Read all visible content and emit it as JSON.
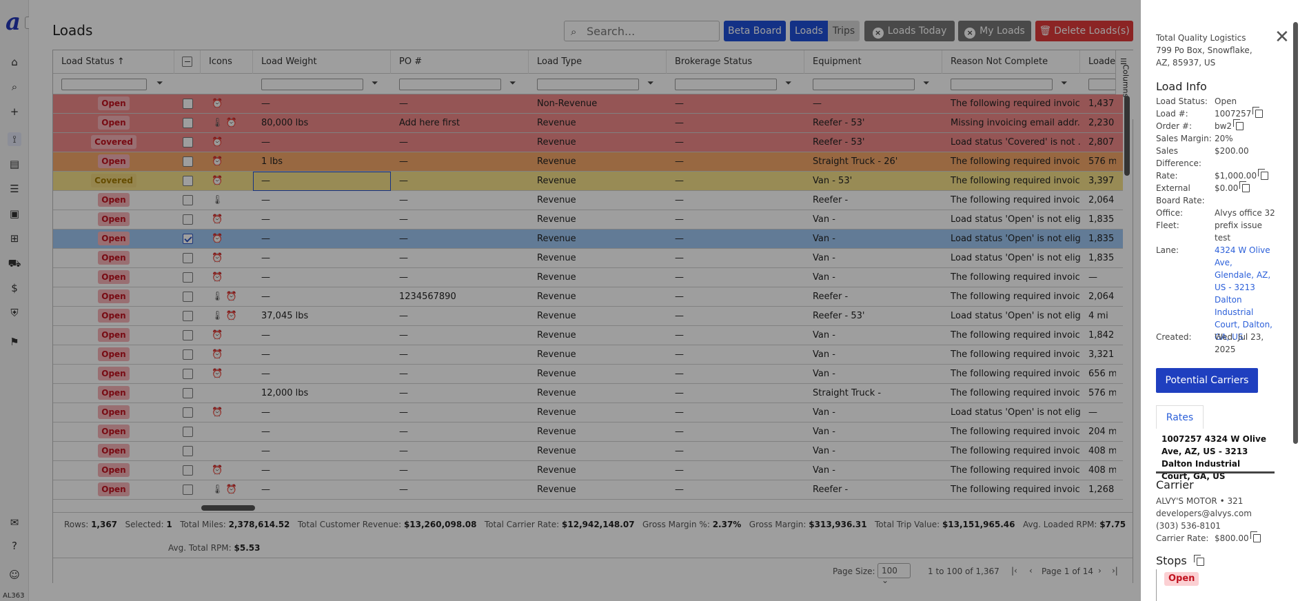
{
  "sidebar": {
    "logo": "a",
    "expand": "›",
    "version": "AL363",
    "icons": [
      "home-icon",
      "search-icon",
      "plus-icon",
      "route-icon",
      "document-icon",
      "list-icon",
      "contacts-icon",
      "hierarchy-icon",
      "truck-icon",
      "invoice-icon",
      "shield-icon",
      "bookmark-icon",
      "chat-icon",
      "help-icon",
      "user-icon"
    ]
  },
  "page": {
    "title": "Loads"
  },
  "search": {
    "placeholder": "Search..."
  },
  "toolbar": {
    "beta_board": "Beta Board",
    "loads": "Loads",
    "trips": "Trips",
    "loads_today": "Loads Today",
    "my_loads": "My Loads",
    "delete_loads": "Delete Loads(s)"
  },
  "colors": {
    "red_row": "#f08a8a",
    "orange_row": "#f5a96a",
    "yellow_row": "#f6e08a",
    "selected_row": "#9ec7f2",
    "open_badge": "#f7b3b8",
    "covered_badge": "#f1d77f",
    "primary": "#2438b8"
  },
  "columns": [
    "Load Status",
    "Icons",
    "Load Weight",
    "PO #",
    "Load Type",
    "Brokerage Status",
    "Equipment",
    "Reason Not Complete",
    "Loaded"
  ],
  "sort_indicator": "↑",
  "columns_tab": "Columns",
  "rows": [
    {
      "status": "Open",
      "tone": "red",
      "checked": false,
      "icons": "A",
      "weight": "—",
      "po": "—",
      "type": "Non-Revenue",
      "brokerage": "—",
      "equipment": "—",
      "reason": "The following required invoic...",
      "loaded": "1,437"
    },
    {
      "status": "Open",
      "tone": "red",
      "checked": false,
      "icons": "TA",
      "weight": "80,000 lbs",
      "po": "Add here first",
      "type": "Revenue",
      "brokerage": "—",
      "equipment": "Reefer - 53'",
      "reason": "Missing invoicing email addr...",
      "loaded": "2,230"
    },
    {
      "status": "Covered",
      "tone": "red",
      "checked": false,
      "icons": "A",
      "weight": "—",
      "po": "—",
      "type": "Revenue",
      "brokerage": "—",
      "equipment": "Reefer - 53'",
      "reason": "Load status 'Covered' is not ...",
      "loaded": "2,807"
    },
    {
      "status": "Open",
      "tone": "orange",
      "checked": false,
      "icons": "A",
      "weight": "1 lbs",
      "po": "—",
      "type": "Revenue",
      "brokerage": "—",
      "equipment": "Straight Truck - 26'",
      "reason": "The following required invoic...",
      "loaded": "576 m"
    },
    {
      "status": "Covered",
      "tone": "yellow",
      "checked": false,
      "icons": "A",
      "weight": "—",
      "po": "—",
      "type": "Revenue",
      "brokerage": "—",
      "equipment": "Van - 53'",
      "reason": "The following required invoic...",
      "loaded": "3,397"
    },
    {
      "status": "Open",
      "tone": "grey",
      "checked": false,
      "icons": "T",
      "weight": "—",
      "po": "—",
      "type": "Revenue",
      "brokerage": "—",
      "equipment": "Reefer -",
      "reason": "The following required invoic...",
      "loaded": "2,064"
    },
    {
      "status": "Open",
      "tone": "grey",
      "checked": false,
      "icons": "A",
      "weight": "—",
      "po": "—",
      "type": "Revenue",
      "brokerage": "—",
      "equipment": "Van -",
      "reason": "Load status 'Open' is not elig...",
      "loaded": "1,835"
    },
    {
      "status": "Open",
      "tone": "blue",
      "checked": true,
      "icons": "A",
      "weight": "—",
      "po": "—",
      "type": "Revenue",
      "brokerage": "—",
      "equipment": "Van -",
      "reason": "Load status 'Open' is not elig...",
      "loaded": "1,835"
    },
    {
      "status": "Open",
      "tone": "grey",
      "checked": false,
      "icons": "A",
      "weight": "—",
      "po": "—",
      "type": "Revenue",
      "brokerage": "—",
      "equipment": "Van -",
      "reason": "Load status 'Open' is not elig...",
      "loaded": "1,835"
    },
    {
      "status": "Open",
      "tone": "grey",
      "checked": false,
      "icons": "A",
      "weight": "—",
      "po": "—",
      "type": "Revenue",
      "brokerage": "—",
      "equipment": "Van -",
      "reason": "The following required invoic...",
      "loaded": "—"
    },
    {
      "status": "Open",
      "tone": "grey",
      "checked": false,
      "icons": "TA",
      "weight": "—",
      "po": "1234567890",
      "type": "Revenue",
      "brokerage": "—",
      "equipment": "Reefer -",
      "reason": "The following required invoic...",
      "loaded": "2,064"
    },
    {
      "status": "Open",
      "tone": "grey",
      "checked": false,
      "icons": "TA",
      "weight": "37,045 lbs",
      "po": "—",
      "type": "Revenue",
      "brokerage": "—",
      "equipment": "Reefer - 53'",
      "reason": "Load status 'Open' is not elig...",
      "loaded": "4 mi"
    },
    {
      "status": "Open",
      "tone": "grey",
      "checked": false,
      "icons": "A",
      "weight": "—",
      "po": "—",
      "type": "Revenue",
      "brokerage": "—",
      "equipment": "Van -",
      "reason": "The following required invoic...",
      "loaded": "1,842"
    },
    {
      "status": "Open",
      "tone": "grey",
      "checked": false,
      "icons": "A",
      "weight": "—",
      "po": "—",
      "type": "Revenue",
      "brokerage": "—",
      "equipment": "Van -",
      "reason": "The following required invoic...",
      "loaded": "3,321"
    },
    {
      "status": "Open",
      "tone": "grey",
      "checked": false,
      "icons": "A",
      "weight": "—",
      "po": "—",
      "type": "Revenue",
      "brokerage": "—",
      "equipment": "Van -",
      "reason": "The following required invoic...",
      "loaded": "656 m"
    },
    {
      "status": "Open",
      "tone": "grey",
      "checked": false,
      "icons": "",
      "weight": "12,000 lbs",
      "po": "—",
      "type": "Revenue",
      "brokerage": "—",
      "equipment": "Straight Truck -",
      "reason": "The following required invoic...",
      "loaded": "576 m"
    },
    {
      "status": "Open",
      "tone": "grey",
      "checked": false,
      "icons": "A",
      "weight": "—",
      "po": "—",
      "type": "Revenue",
      "brokerage": "—",
      "equipment": "Van -",
      "reason": "Load status 'Open' is not elig...",
      "loaded": "—"
    },
    {
      "status": "Open",
      "tone": "grey",
      "checked": false,
      "icons": "",
      "weight": "—",
      "po": "—",
      "type": "Revenue",
      "brokerage": "—",
      "equipment": "Van -",
      "reason": "The following required invoic...",
      "loaded": "204 m"
    },
    {
      "status": "Open",
      "tone": "grey",
      "checked": false,
      "icons": "",
      "weight": "—",
      "po": "—",
      "type": "Revenue",
      "brokerage": "—",
      "equipment": "Van -",
      "reason": "The following required invoic...",
      "loaded": "408 m"
    },
    {
      "status": "Open",
      "tone": "grey",
      "checked": false,
      "icons": "A",
      "weight": "—",
      "po": "—",
      "type": "Revenue",
      "brokerage": "—",
      "equipment": "Van -",
      "reason": "The following required invoic...",
      "loaded": "408 m"
    },
    {
      "status": "Open",
      "tone": "grey",
      "checked": false,
      "icons": "TA",
      "weight": "—",
      "po": "—",
      "type": "Revenue",
      "brokerage": "—",
      "equipment": "Reefer -",
      "reason": "The following required invoic...",
      "loaded": "1,268"
    }
  ],
  "summary": {
    "rows_label": "Rows:",
    "rows": "1,367",
    "selected_label": "Selected:",
    "selected": "1",
    "miles_label": "Total Miles:",
    "miles": "2,378,614.52",
    "cust_rev_label": "Total Customer Revenue:",
    "cust_rev": "$13,260,098.08",
    "carrier_rate_label": "Total Carrier Rate:",
    "carrier_rate": "$12,942,148.07",
    "gm_pct_label": "Gross Margin %:",
    "gm_pct": "2.37%",
    "gm_label": "Gross Margin:",
    "gm": "$313,936.31",
    "trip_label": "Total Trip Value:",
    "trip": "$13,151,965.46",
    "rpm_label": "Avg. Loaded RPM:",
    "rpm": "$7.75",
    "total_rpm_label": "Avg. Total RPM:",
    "total_rpm": "$5.53"
  },
  "pager": {
    "page_size_label": "Page Size:",
    "page_size": "100",
    "range": "1 to 100 of 1,367",
    "page": "Page 1 of 14"
  },
  "panel": {
    "address_lines": [
      "Total Quality Logistics",
      "799 Po Box, Snowflake,",
      "AZ, 85937, US"
    ],
    "load_info_title": "Load Info",
    "fields": [
      {
        "k": "Load Status:",
        "v": "Open"
      },
      {
        "k": "Load #:",
        "v": "1007257"
      },
      {
        "k": "Order #:",
        "v": "bw2"
      },
      {
        "k": "Sales Margin:",
        "v": "20%"
      },
      {
        "k": "Sales Difference:",
        "v": "$200.00"
      },
      {
        "k": "Rate:",
        "v": "$1,000.00"
      },
      {
        "k": "External Board Rate:",
        "v": "$0.00"
      },
      {
        "k": "Office:",
        "v": "Alvys office 32"
      },
      {
        "k": "Fleet:",
        "v": "prefix issue test"
      },
      {
        "k": "Lane:",
        "v": "4324 W Olive Ave, Glendale, AZ, US - 3213 Dalton Industrial Court, Dalton, GA, US"
      },
      {
        "k": "Created:",
        "v": "Wed. Jul 23, 2025"
      }
    ],
    "potential_carriers": "Potential Carriers",
    "rates_tab": "Rates",
    "tab_content": "1007257 4324 W Olive Ave, AZ, US - 3213 Dalton Industrial Court, GA, US",
    "carrier_title": "Carrier",
    "carrier_name": "ALVY'S MOTOR • 321",
    "carrier_email": "developers@alvys.com",
    "carrier_phone": "(303) 536-8101",
    "carrier_rate_label": "Carrier Rate:",
    "carrier_rate": "$800.00",
    "stops_title": "Stops",
    "stop_status": "Open"
  }
}
